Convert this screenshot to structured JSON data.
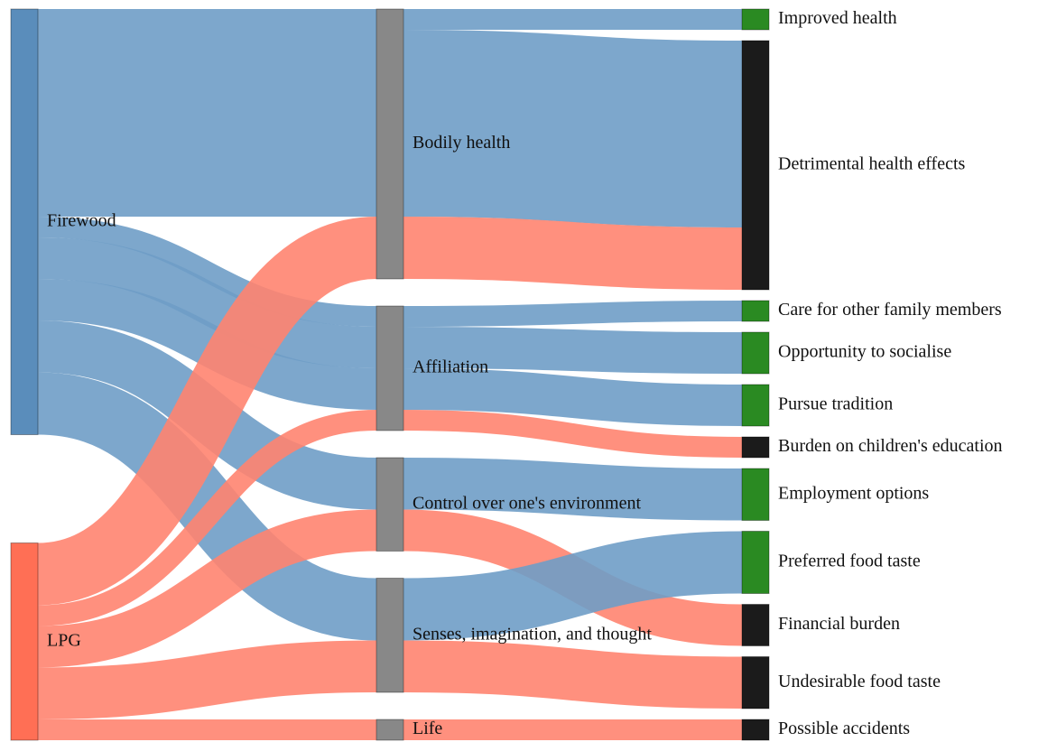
{
  "chart_data": {
    "type": "sankey",
    "nodes": [
      {
        "name": "Firewood",
        "color": "#5a8dbb"
      },
      {
        "name": "LPG",
        "color": "#ff6f55"
      },
      {
        "name": "Bodily health",
        "color": "#888888"
      },
      {
        "name": "Affiliation",
        "color": "#888888"
      },
      {
        "name": "Control over one's environment",
        "color": "#888888"
      },
      {
        "name": "Senses, imagination, and thought",
        "color": "#888888"
      },
      {
        "name": "Life",
        "color": "#888888"
      },
      {
        "name": "Improved health",
        "color": "#2a8a22"
      },
      {
        "name": "Detrimental health effects",
        "color": "#1b1b1b"
      },
      {
        "name": "Care for other family members",
        "color": "#2a8a22"
      },
      {
        "name": "Opportunity to socialise",
        "color": "#2a8a22"
      },
      {
        "name": "Pursue tradition",
        "color": "#2a8a22"
      },
      {
        "name": "Burden on children's education",
        "color": "#1b1b1b"
      },
      {
        "name": "Employment options",
        "color": "#2a8a22"
      },
      {
        "name": "Preferred food taste",
        "color": "#2a8a22"
      },
      {
        "name": "Financial burden",
        "color": "#1b1b1b"
      },
      {
        "name": "Undesirable food taste",
        "color": "#1b1b1b"
      },
      {
        "name": "Possible accidents",
        "color": "#1b1b1b"
      }
    ],
    "links": [
      {
        "source": 0,
        "target": 2,
        "value": 10,
        "color": "#6f9dc6"
      },
      {
        "source": 0,
        "target": 3,
        "value": 1,
        "color": "#6f9dc6"
      },
      {
        "source": 0,
        "target": 3,
        "value": 2,
        "color": "#6f9dc6"
      },
      {
        "source": 0,
        "target": 3,
        "value": 2,
        "color": "#6f9dc6"
      },
      {
        "source": 0,
        "target": 4,
        "value": 2.5,
        "color": "#6f9dc6"
      },
      {
        "source": 0,
        "target": 5,
        "value": 3,
        "color": "#6f9dc6"
      },
      {
        "source": 1,
        "target": 2,
        "value": 3,
        "color": "#ff8470"
      },
      {
        "source": 1,
        "target": 3,
        "value": 1,
        "color": "#ff8470"
      },
      {
        "source": 1,
        "target": 4,
        "value": 2,
        "color": "#ff8470"
      },
      {
        "source": 1,
        "target": 5,
        "value": 2.5,
        "color": "#ff8470"
      },
      {
        "source": 1,
        "target": 6,
        "value": 1,
        "color": "#ff8470"
      },
      {
        "source": 2,
        "target": 7,
        "value": 1,
        "color": "#6f9dc6"
      },
      {
        "source": 2,
        "target": 8,
        "value": 9,
        "color": "#6f9dc6"
      },
      {
        "source": 2,
        "target": 8,
        "value": 3,
        "color": "#ff8470"
      },
      {
        "source": 3,
        "target": 9,
        "value": 1,
        "color": "#6f9dc6"
      },
      {
        "source": 3,
        "target": 10,
        "value": 2,
        "color": "#6f9dc6"
      },
      {
        "source": 3,
        "target": 11,
        "value": 2,
        "color": "#6f9dc6"
      },
      {
        "source": 3,
        "target": 12,
        "value": 1,
        "color": "#ff8470"
      },
      {
        "source": 4,
        "target": 13,
        "value": 2.5,
        "color": "#6f9dc6"
      },
      {
        "source": 4,
        "target": 15,
        "value": 2,
        "color": "#ff8470"
      },
      {
        "source": 5,
        "target": 14,
        "value": 3,
        "color": "#6f9dc6"
      },
      {
        "source": 5,
        "target": 16,
        "value": 2.5,
        "color": "#ff8470"
      },
      {
        "source": 6,
        "target": 17,
        "value": 1,
        "color": "#ff8470"
      }
    ]
  }
}
